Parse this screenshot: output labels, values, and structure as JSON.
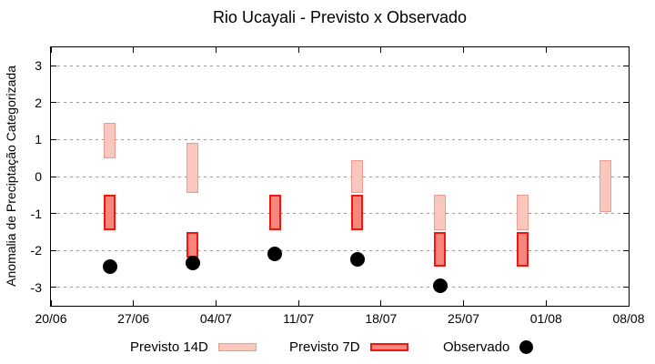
{
  "chart_data": {
    "type": "bar",
    "subtype": "range-bars-with-points",
    "title": "Rio Ucayali - Previsto x Observado",
    "ylabel": "Anomalia de Preciptação Categorizada",
    "ylim": [
      -3.5,
      3.5
    ],
    "yticks": [
      3,
      2,
      1,
      0,
      -1,
      -2,
      -3
    ],
    "xtick_labels": [
      "20/06",
      "27/06",
      "04/07",
      "11/07",
      "18/07",
      "25/07",
      "01/08",
      "08/08"
    ],
    "xtick_days": [
      0,
      7,
      14,
      21,
      28,
      35,
      42,
      49
    ],
    "x_range_days": [
      0,
      49
    ],
    "grid": "horizontal-dotted",
    "legend_position": "bottom",
    "series": [
      {
        "name": "Previsto 14D",
        "type": "bar-range",
        "fill": "#f9c7bd",
        "border": "#f09a8d",
        "border_px": 1,
        "points": [
          {
            "day": 5,
            "date": "25/06",
            "low": 0.5,
            "high": 1.45
          },
          {
            "day": 12,
            "date": "02/07",
            "low": -0.45,
            "high": 0.9
          },
          {
            "day": 26,
            "date": "16/07",
            "low": -0.45,
            "high": 0.45
          },
          {
            "day": 33,
            "date": "23/07",
            "low": -1.45,
            "high": -0.5
          },
          {
            "day": 40,
            "date": "30/07",
            "low": -1.45,
            "high": -0.5
          },
          {
            "day": 47,
            "date": "06/08",
            "low": -0.95,
            "high": 0.45
          }
        ]
      },
      {
        "name": "Previsto 7D",
        "type": "bar-range",
        "fill": "#f8867c",
        "border": "#f2160f",
        "border_px": 2,
        "points": [
          {
            "day": 5,
            "date": "25/06",
            "low": -1.45,
            "high": -0.5
          },
          {
            "day": 12,
            "date": "02/07",
            "low": -2.2,
            "high": -1.5
          },
          {
            "day": 19,
            "date": "09/07",
            "low": -1.45,
            "high": -0.5
          },
          {
            "day": 26,
            "date": "16/07",
            "low": -1.45,
            "high": -0.5
          },
          {
            "day": 33,
            "date": "23/07",
            "low": -2.45,
            "high": -1.5
          },
          {
            "day": 40,
            "date": "30/07",
            "low": -2.45,
            "high": -1.5
          }
        ]
      },
      {
        "name": "Observado",
        "type": "point",
        "color": "#000000",
        "points": [
          {
            "day": 5,
            "date": "25/06",
            "value": -2.45
          },
          {
            "day": 12,
            "date": "02/07",
            "value": -2.35
          },
          {
            "day": 19,
            "date": "09/07",
            "value": -2.1
          },
          {
            "day": 26,
            "date": "16/07",
            "value": -2.25
          },
          {
            "day": 33,
            "date": "23/07",
            "value": -2.95
          }
        ]
      }
    ]
  }
}
